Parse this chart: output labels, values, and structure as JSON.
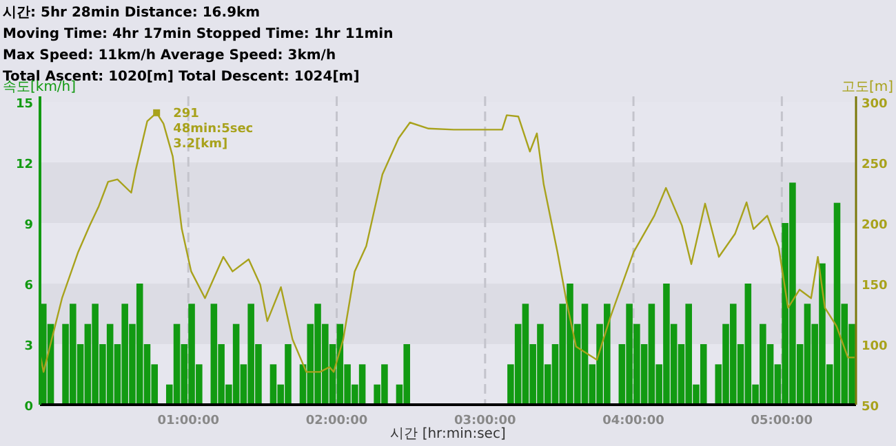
{
  "chart_data": {
    "type": "bar",
    "title": "시간: 5hr 28min  Distance: 16.9km",
    "annotations": [
      "Moving Time: 4hr 17min   Stopped Time: 1hr 11min",
      "Max Speed: 11km/h   Average Speed: 3km/h",
      "Total Ascent: 1020[m]   Total Descent: 1024[m]",
      "291\n48min:5sec\n3.2[km]"
    ],
    "xlabel": "시간 [hr:min:sec]",
    "ylabel": "속도[km/h]",
    "y2label": "고도[m]",
    "xlim": [
      0,
      5.5
    ],
    "xticks": [
      {
        "value": 1,
        "label": "01:00:00"
      },
      {
        "value": 2,
        "label": "02:00:00"
      },
      {
        "value": 3,
        "label": "03:00:00"
      },
      {
        "value": 4,
        "label": "04:00:00"
      },
      {
        "value": 5,
        "label": "05:00:00"
      }
    ],
    "ylim": [
      0,
      15
    ],
    "yticks": [
      0,
      3,
      6,
      9,
      12,
      15
    ],
    "y2lim": [
      50,
      300
    ],
    "y2ticks": [
      50,
      100,
      150,
      200,
      250,
      300
    ],
    "grid": true,
    "series": [
      {
        "color": "#129a12",
        "x": [
          0,
          0.05,
          0.1,
          0.15,
          0.2,
          0.25,
          0.3,
          0.35,
          0.4,
          0.45,
          0.5,
          0.55,
          0.6,
          0.65,
          0.7,
          0.75,
          0.8,
          0.85,
          0.9,
          0.95,
          1.0,
          1.05,
          1.1,
          1.15,
          1.2,
          1.25,
          1.3,
          1.35,
          1.4,
          1.45,
          1.5,
          1.55,
          1.6,
          1.65,
          1.7,
          1.75,
          1.8,
          1.85,
          1.9,
          1.95,
          2.0,
          2.05,
          2.1,
          2.15,
          2.2,
          2.25,
          2.3,
          2.35,
          2.4,
          2.45,
          2.5,
          3.15,
          3.2,
          3.25,
          3.3,
          3.35,
          3.4,
          3.45,
          3.5,
          3.55,
          3.6,
          3.65,
          3.7,
          3.75,
          3.8,
          3.85,
          3.9,
          3.95,
          4.0,
          4.05,
          4.1,
          4.15,
          4.2,
          4.25,
          4.3,
          4.35,
          4.4,
          4.45,
          4.5,
          4.55,
          4.6,
          4.65,
          4.7,
          4.75,
          4.8,
          4.85,
          4.9,
          4.95,
          5.0,
          5.05,
          5.1,
          5.15,
          5.2,
          5.25,
          5.3,
          5.35,
          5.4,
          5.45
        ],
        "values": [
          5,
          4,
          0,
          4,
          5,
          3,
          4,
          5,
          3,
          4,
          3,
          5,
          4,
          6,
          3,
          2,
          0,
          1,
          4,
          3,
          5,
          2,
          0,
          5,
          3,
          1,
          4,
          2,
          5,
          3,
          0,
          2,
          1,
          3,
          0,
          2,
          4,
          5,
          4,
          3,
          4,
          2,
          1,
          2,
          0,
          1,
          2,
          0,
          1,
          3,
          0,
          2,
          4,
          5,
          3,
          4,
          2,
          3,
          5,
          6,
          4,
          5,
          2,
          4,
          5,
          0,
          3,
          5,
          4,
          3,
          5,
          2,
          6,
          4,
          3,
          5,
          1,
          3,
          0,
          2,
          4,
          5,
          3,
          6,
          1,
          4,
          3,
          2,
          9,
          11,
          3,
          5,
          4,
          7,
          2,
          10,
          5,
          4
        ]
      },
      {
        "type": "line",
        "axis": "y2",
        "color": "#a8a21c",
        "x": [
          0,
          0.024,
          0.149,
          0.257,
          0.335,
          0.397,
          0.459,
          0.522,
          0.615,
          0.646,
          0.723,
          0.786,
          0.832,
          0.895,
          0.956,
          1.019,
          1.112,
          1.236,
          1.298,
          1.407,
          1.485,
          1.532,
          1.624,
          1.702,
          1.795,
          1.888,
          1.951,
          1.98,
          2.044,
          2.121,
          2.199,
          2.308,
          2.417,
          2.494,
          2.619,
          2.789,
          3.115,
          3.146,
          3.224,
          3.302,
          3.349,
          3.395,
          3.488,
          3.551,
          3.613,
          3.753,
          3.846,
          4.001,
          4.141,
          4.219,
          4.327,
          4.39,
          4.483,
          4.576,
          4.684,
          4.762,
          4.809,
          4.902,
          4.979,
          5.042,
          5.119,
          5.197,
          5.243,
          5.29,
          5.368,
          5.445,
          5.49
        ],
        "values": [
          92,
          77,
          138,
          176,
          198,
          214,
          234,
          236,
          225,
          244,
          284,
          291,
          282,
          255,
          195,
          160,
          138,
          172,
          160,
          170,
          149,
          119,
          147,
          104,
          77,
          77,
          81,
          77,
          104,
          160,
          181,
          240,
          270,
          283,
          278,
          277,
          277,
          289,
          288,
          259,
          274,
          232,
          176,
          134,
          98,
          87,
          123,
          176,
          206,
          229,
          198,
          166,
          216,
          172,
          191,
          217,
          195,
          206,
          180,
          130,
          145,
          138,
          172,
          130,
          115,
          89,
          89
        ]
      }
    ]
  }
}
